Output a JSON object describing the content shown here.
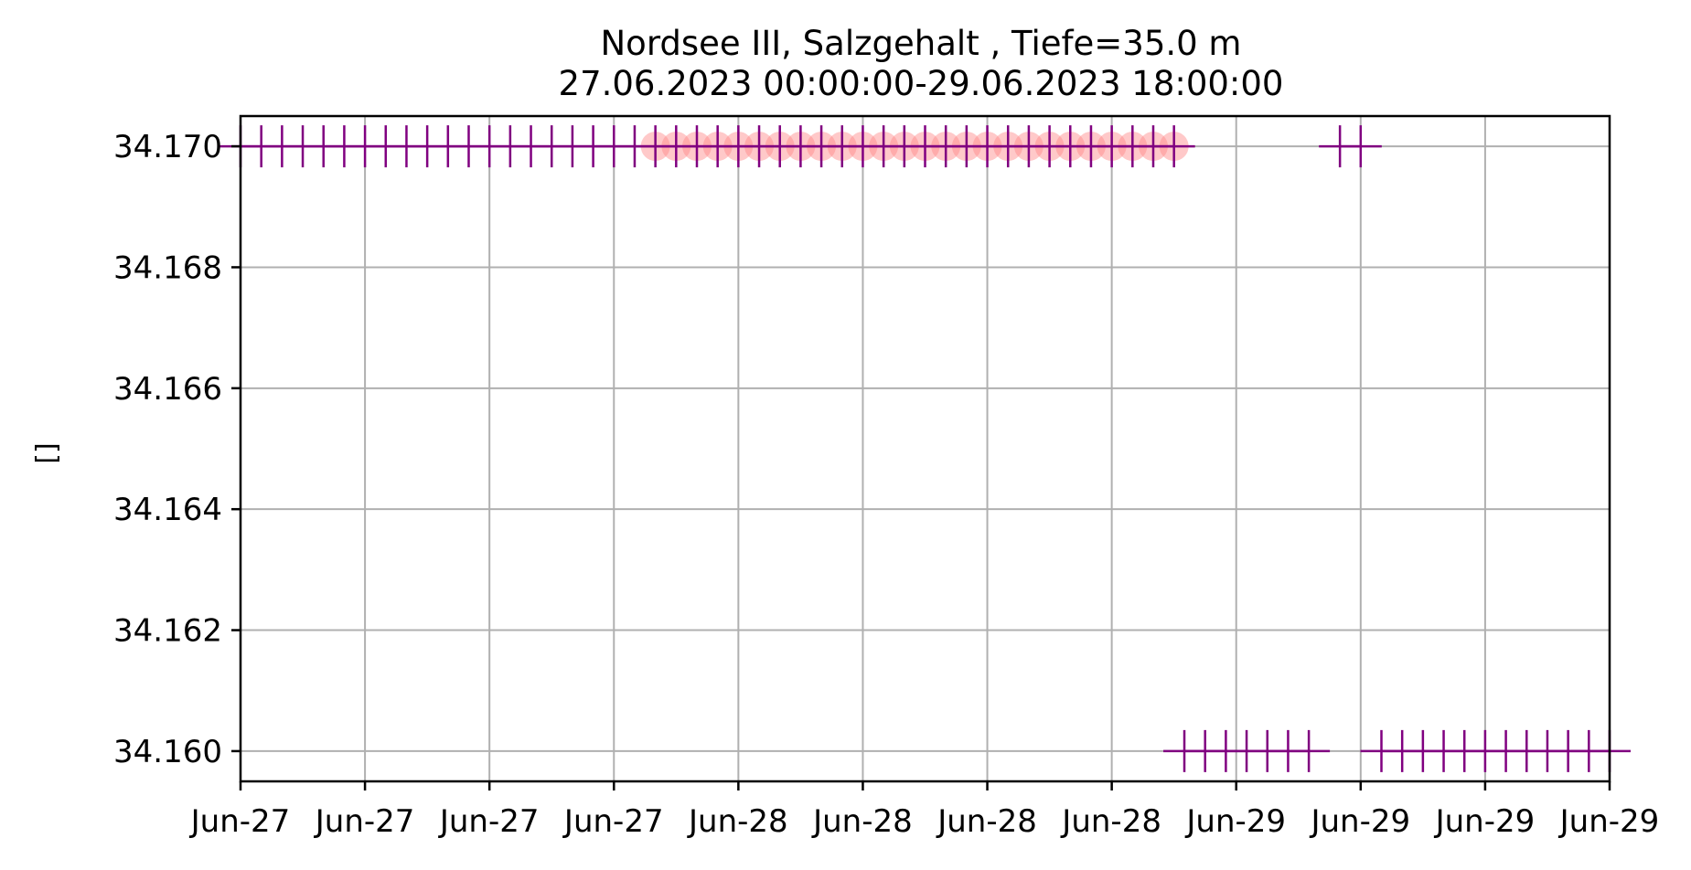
{
  "chart_data": {
    "type": "scatter",
    "title": [
      "Nordsee III, Salzgehalt , Tiefe=35.0 m",
      "27.06.2023 00:00:00-29.06.2023 18:00:00"
    ],
    "xlabel": "",
    "ylabel": "[]",
    "x_ticks": [
      {
        "x": "2023-06-27T00:00",
        "label": "Jun-27"
      },
      {
        "x": "2023-06-27T06:00",
        "label": "Jun-27"
      },
      {
        "x": "2023-06-27T12:00",
        "label": "Jun-27"
      },
      {
        "x": "2023-06-27T18:00",
        "label": "Jun-27"
      },
      {
        "x": "2023-06-28T00:00",
        "label": "Jun-28"
      },
      {
        "x": "2023-06-28T06:00",
        "label": "Jun-28"
      },
      {
        "x": "2023-06-28T12:00",
        "label": "Jun-28"
      },
      {
        "x": "2023-06-28T18:00",
        "label": "Jun-28"
      },
      {
        "x": "2023-06-29T00:00",
        "label": "Jun-29"
      },
      {
        "x": "2023-06-29T06:00",
        "label": "Jun-29"
      },
      {
        "x": "2023-06-29T12:00",
        "label": "Jun-29"
      },
      {
        "x": "2023-06-29T18:00",
        "label": "Jun-29"
      }
    ],
    "y_ticks": [
      34.16,
      34.162,
      34.164,
      34.166,
      34.168,
      34.17
    ],
    "y_tick_labels": [
      "34.160",
      "34.162",
      "34.164",
      "34.166",
      "34.168",
      "34.170"
    ],
    "xlim": [
      "2023-06-27T00:00",
      "2023-06-29T18:00"
    ],
    "ylim": [
      34.1595,
      34.1705
    ],
    "grid": true,
    "colors": {
      "plus": "#800080",
      "circle": "#ff8888",
      "grid": "#b0b0b0",
      "axis": "#000000"
    },
    "series": [
      {
        "marker": "plus",
        "values": [
          [
            "2023-06-27T00:00",
            34.17
          ],
          [
            "2023-06-27T01:00",
            34.17
          ],
          [
            "2023-06-27T02:00",
            34.17
          ],
          [
            "2023-06-27T03:00",
            34.17
          ],
          [
            "2023-06-27T04:00",
            34.17
          ],
          [
            "2023-06-27T05:00",
            34.17
          ],
          [
            "2023-06-27T06:00",
            34.17
          ],
          [
            "2023-06-27T07:00",
            34.17
          ],
          [
            "2023-06-27T08:00",
            34.17
          ],
          [
            "2023-06-27T09:00",
            34.17
          ],
          [
            "2023-06-27T10:00",
            34.17
          ],
          [
            "2023-06-27T11:00",
            34.17
          ],
          [
            "2023-06-27T12:00",
            34.17
          ],
          [
            "2023-06-27T13:00",
            34.17
          ],
          [
            "2023-06-27T14:00",
            34.17
          ],
          [
            "2023-06-27T15:00",
            34.17
          ],
          [
            "2023-06-27T16:00",
            34.17
          ],
          [
            "2023-06-27T17:00",
            34.17
          ],
          [
            "2023-06-27T18:00",
            34.17
          ],
          [
            "2023-06-27T19:00",
            34.17
          ],
          [
            "2023-06-27T20:00",
            34.17
          ],
          [
            "2023-06-27T21:00",
            34.17
          ],
          [
            "2023-06-27T22:00",
            34.17
          ],
          [
            "2023-06-27T23:00",
            34.17
          ],
          [
            "2023-06-28T00:00",
            34.17
          ],
          [
            "2023-06-28T01:00",
            34.17
          ],
          [
            "2023-06-28T02:00",
            34.17
          ],
          [
            "2023-06-28T03:00",
            34.17
          ],
          [
            "2023-06-28T04:00",
            34.17
          ],
          [
            "2023-06-28T05:00",
            34.17
          ],
          [
            "2023-06-28T06:00",
            34.17
          ],
          [
            "2023-06-28T07:00",
            34.17
          ],
          [
            "2023-06-28T08:00",
            34.17
          ],
          [
            "2023-06-28T09:00",
            34.17
          ],
          [
            "2023-06-28T10:00",
            34.17
          ],
          [
            "2023-06-28T11:00",
            34.17
          ],
          [
            "2023-06-28T12:00",
            34.17
          ],
          [
            "2023-06-28T13:00",
            34.17
          ],
          [
            "2023-06-28T14:00",
            34.17
          ],
          [
            "2023-06-28T15:00",
            34.17
          ],
          [
            "2023-06-28T16:00",
            34.17
          ],
          [
            "2023-06-28T17:00",
            34.17
          ],
          [
            "2023-06-28T18:00",
            34.17
          ],
          [
            "2023-06-28T19:00",
            34.17
          ],
          [
            "2023-06-28T20:00",
            34.17
          ],
          [
            "2023-06-28T21:00",
            34.17
          ],
          [
            "2023-06-28T21:30",
            34.16
          ],
          [
            "2023-06-28T22:30",
            34.16
          ],
          [
            "2023-06-28T23:30",
            34.16
          ],
          [
            "2023-06-29T00:30",
            34.16
          ],
          [
            "2023-06-29T01:30",
            34.16
          ],
          [
            "2023-06-29T02:30",
            34.16
          ],
          [
            "2023-06-29T03:30",
            34.16
          ],
          [
            "2023-06-29T05:00",
            34.17
          ],
          [
            "2023-06-29T06:00",
            34.17
          ],
          [
            "2023-06-29T07:00",
            34.16
          ],
          [
            "2023-06-29T08:00",
            34.16
          ],
          [
            "2023-06-29T09:00",
            34.16
          ],
          [
            "2023-06-29T10:00",
            34.16
          ],
          [
            "2023-06-29T11:00",
            34.16
          ],
          [
            "2023-06-29T12:00",
            34.16
          ],
          [
            "2023-06-29T13:00",
            34.16
          ],
          [
            "2023-06-29T14:00",
            34.16
          ],
          [
            "2023-06-29T15:00",
            34.16
          ],
          [
            "2023-06-29T16:00",
            34.16
          ],
          [
            "2023-06-29T17:00",
            34.16
          ],
          [
            "2023-06-29T18:00",
            34.16
          ]
        ]
      },
      {
        "marker": "circle",
        "values": [
          [
            "2023-06-27T20:00",
            34.17
          ],
          [
            "2023-06-27T21:00",
            34.17
          ],
          [
            "2023-06-27T22:00",
            34.17
          ],
          [
            "2023-06-27T23:00",
            34.17
          ],
          [
            "2023-06-28T00:00",
            34.17
          ],
          [
            "2023-06-28T01:00",
            34.17
          ],
          [
            "2023-06-28T02:00",
            34.17
          ],
          [
            "2023-06-28T03:00",
            34.17
          ],
          [
            "2023-06-28T04:00",
            34.17
          ],
          [
            "2023-06-28T05:00",
            34.17
          ],
          [
            "2023-06-28T06:00",
            34.17
          ],
          [
            "2023-06-28T07:00",
            34.17
          ],
          [
            "2023-06-28T08:00",
            34.17
          ],
          [
            "2023-06-28T09:00",
            34.17
          ],
          [
            "2023-06-28T10:00",
            34.17
          ],
          [
            "2023-06-28T11:00",
            34.17
          ],
          [
            "2023-06-28T12:00",
            34.17
          ],
          [
            "2023-06-28T13:00",
            34.17
          ],
          [
            "2023-06-28T14:00",
            34.17
          ],
          [
            "2023-06-28T15:00",
            34.17
          ],
          [
            "2023-06-28T16:00",
            34.17
          ],
          [
            "2023-06-28T17:00",
            34.17
          ],
          [
            "2023-06-28T18:00",
            34.17
          ],
          [
            "2023-06-28T19:00",
            34.17
          ],
          [
            "2023-06-28T20:00",
            34.17
          ],
          [
            "2023-06-28T21:00",
            34.17
          ]
        ]
      }
    ]
  }
}
